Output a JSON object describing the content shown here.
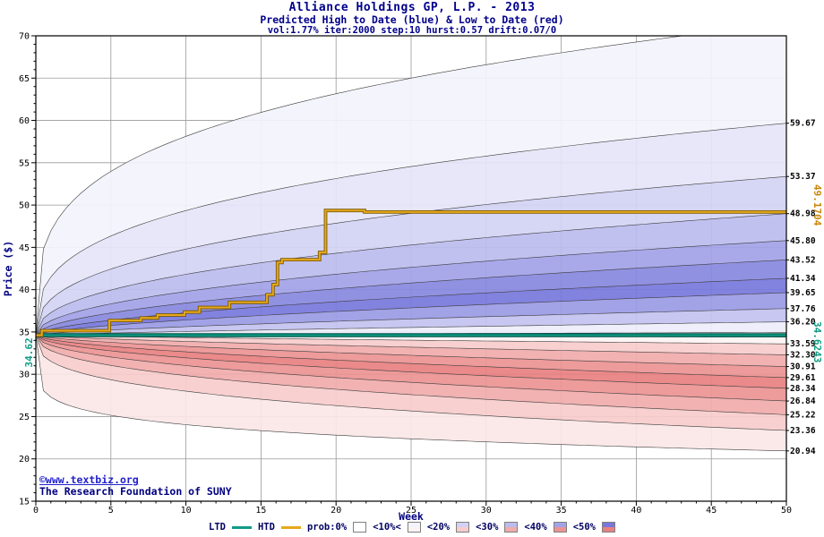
{
  "colors": {
    "navy": "#000080",
    "title": "#00008b",
    "link_blue": "#2121cc",
    "grid": "#9a9a9a",
    "axis": "#000000",
    "teal": "#109b85",
    "teal_dark": "#00584c",
    "orange": "#e8a81c",
    "orange_dark": "#7a5a00",
    "orange_label": "#c8860a"
  },
  "watermark": {
    "line1": "©www.textbiz.org",
    "line2": "The Research Foundation of SUNY"
  },
  "legend": {
    "ltd": "LTD",
    "htd": "HTD",
    "classes": [
      {
        "label": "prob:0%",
        "blue": "#ffffff",
        "red": "#ffffff"
      },
      {
        "label": "<10%<",
        "blue": "#f3f3fc",
        "red": "#fdf3f3"
      },
      {
        "label": "<20%",
        "blue": "#d2d2f4",
        "red": "#f7cccc"
      },
      {
        "label": "<30%",
        "blue": "#bcbcef",
        "red": "#f1abab"
      },
      {
        "label": "<40%",
        "blue": "#a2a2e8",
        "red": "#ec9292"
      },
      {
        "label": "<50%",
        "blue": "#7777dc",
        "red": "#e88080"
      }
    ]
  },
  "chart_data": {
    "type": "area",
    "title": "Alliance Holdings GP, L.P. - 2013",
    "subtitle": "Predicted High to Date (blue) &  Low to Date (red)",
    "params_line": "vol:1.77% iter:2000 step:10 hurst:0.57 drift:0.07/0",
    "xlabel": "Week",
    "ylabel": "Price ($)",
    "x_range": [
      0,
      50
    ],
    "y_range": [
      15,
      70
    ],
    "x_major_tick": 5,
    "y_major_tick": 5,
    "x_minor_tick": 1,
    "y_minor_tick": 1,
    "grid": true,
    "legend_position": "bottom",
    "start_price": 34.62,
    "start_price_label": "34.62",
    "high_fan": {
      "note": "predicted high-to-date probability boundaries; f = value at week 50, e = spread exponent",
      "boundaries": [
        {
          "f": 71.5,
          "e": 0.28,
          "label": ""
        },
        {
          "f": 59.67,
          "e": 0.33,
          "label": "59.67"
        },
        {
          "f": 53.37,
          "e": 0.38,
          "label": "53.37"
        },
        {
          "f": 48.98,
          "e": 0.43,
          "label": "48.98"
        },
        {
          "f": 45.8,
          "e": 0.48,
          "label": "45.80"
        },
        {
          "f": 43.52,
          "e": 0.53,
          "label": "43.52"
        },
        {
          "f": 41.34,
          "e": 0.58,
          "label": "41.34"
        },
        {
          "f": 39.65,
          "e": 0.64,
          "label": "39.65"
        },
        {
          "f": 37.76,
          "e": 0.71,
          "label": "37.76"
        },
        {
          "f": 36.2,
          "e": 0.8,
          "label": "36.20"
        },
        {
          "f": 34.95,
          "e": 0.95,
          "label": ""
        }
      ],
      "band_colors": [
        "#f3f3fc",
        "#e5e5f9",
        "#d2d2f4",
        "#bcbcef",
        "#a2a2e8",
        "#8888e0",
        "#7777dc",
        "#9a9ae5",
        "#c2c2f0",
        "#eeeefb"
      ]
    },
    "low_fan": {
      "note": "predicted low-to-date probability boundaries",
      "boundaries": [
        {
          "f": 34.4,
          "e": 0.95,
          "label": ""
        },
        {
          "f": 33.59,
          "e": 0.8,
          "label": "33.59"
        },
        {
          "f": 32.3,
          "e": 0.71,
          "label": "32.30"
        },
        {
          "f": 30.91,
          "e": 0.64,
          "label": "30.91"
        },
        {
          "f": 29.61,
          "e": 0.58,
          "label": "29.61"
        },
        {
          "f": 28.34,
          "e": 0.53,
          "label": "28.34"
        },
        {
          "f": 26.84,
          "e": 0.48,
          "label": "26.84"
        },
        {
          "f": 25.22,
          "e": 0.42,
          "label": "25.22"
        },
        {
          "f": 23.36,
          "e": 0.33,
          "label": "23.36"
        },
        {
          "f": 20.94,
          "e": 0.16,
          "label": "20.94"
        }
      ],
      "band_colors": [
        "#fdf3f3",
        "#f7cccc",
        "#f1abab",
        "#ec9292",
        "#e88080",
        "#ec9292",
        "#f1abab",
        "#f7cccc",
        "#fbe7e7"
      ]
    },
    "htd_line": {
      "final_label": "49.1704",
      "points": [
        [
          0,
          34.62
        ],
        [
          0.4,
          34.62
        ],
        [
          0.4,
          35.15
        ],
        [
          4.9,
          35.15
        ],
        [
          4.9,
          36.35
        ],
        [
          7.0,
          36.35
        ],
        [
          7.0,
          36.65
        ],
        [
          8.1,
          36.65
        ],
        [
          8.1,
          37.0
        ],
        [
          9.9,
          37.0
        ],
        [
          9.9,
          37.35
        ],
        [
          10.9,
          37.35
        ],
        [
          10.9,
          37.9
        ],
        [
          12.9,
          37.9
        ],
        [
          12.9,
          38.5
        ],
        [
          15.4,
          38.5
        ],
        [
          15.4,
          39.4
        ],
        [
          15.8,
          39.4
        ],
        [
          15.8,
          40.6
        ],
        [
          16.1,
          40.6
        ],
        [
          16.1,
          43.2
        ],
        [
          16.4,
          43.2
        ],
        [
          16.4,
          43.55
        ],
        [
          18.9,
          43.55
        ],
        [
          18.9,
          44.4
        ],
        [
          19.3,
          44.4
        ],
        [
          19.3,
          49.35
        ],
        [
          21.9,
          49.35
        ],
        [
          21.9,
          49.17
        ],
        [
          50,
          49.17
        ]
      ]
    },
    "ltd_line": {
      "final_label": "34.6243",
      "points": [
        [
          0,
          34.62
        ],
        [
          50,
          34.62
        ]
      ]
    }
  }
}
